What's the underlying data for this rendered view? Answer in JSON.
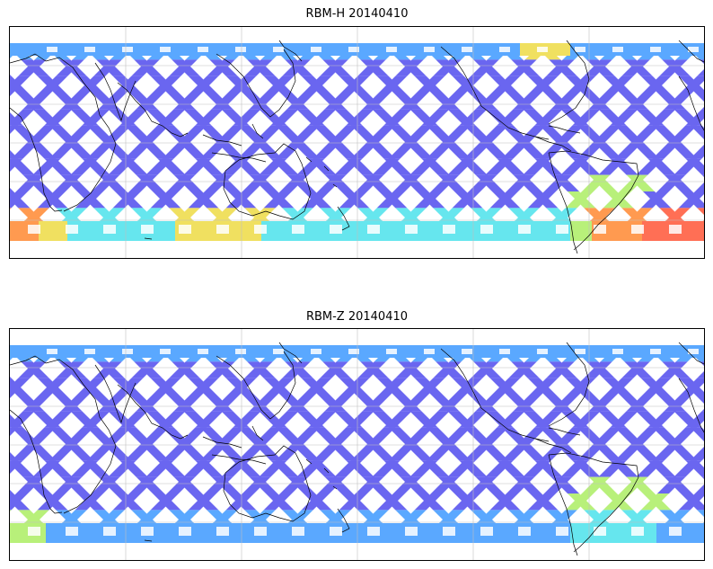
{
  "panels": [
    {
      "title": "RBM-H 20140410",
      "variant": "H"
    },
    {
      "title": "RBM-Z 20140410",
      "variant": "Z"
    }
  ],
  "colors": {
    "swath_low": "#6a66f0",
    "swath_mid": "#5aa8ff",
    "swath_cyan": "#66e6ee",
    "swath_green": "#b8f07a",
    "swath_yellow": "#f0e060",
    "swath_orange": "#ff9a50",
    "swath_red": "#ff6f55",
    "coast": "#000000",
    "grid": "#bfbfbf"
  }
}
